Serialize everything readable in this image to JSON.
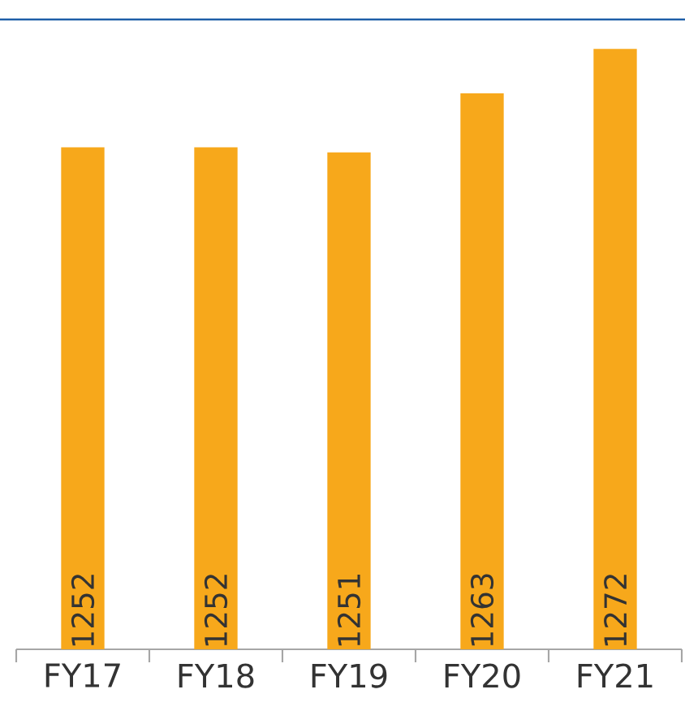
{
  "chart_data": {
    "type": "bar",
    "categories": [
      "FY17",
      "FY18",
      "FY19",
      "FY20",
      "FY21"
    ],
    "values": [
      1252,
      1252,
      1251,
      1263,
      1272
    ],
    "ylim": [
      1150,
      1278
    ],
    "data_labels": true,
    "color": "#f7a81b"
  }
}
